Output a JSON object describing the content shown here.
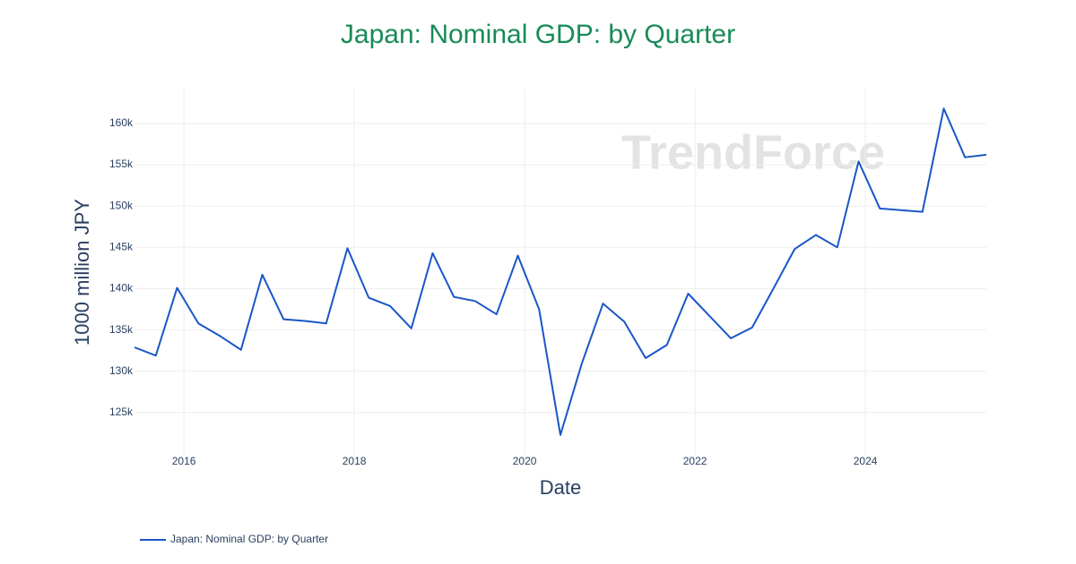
{
  "chart_data": {
    "type": "line",
    "title": "Japan: Nominal GDP: by Quarter",
    "x_label": "Date",
    "y_label": "1000 million JPY",
    "watermark": "TrendForce",
    "x": [
      2015.42,
      2015.67,
      2015.92,
      2016.17,
      2016.42,
      2016.67,
      2016.92,
      2017.17,
      2017.42,
      2017.67,
      2017.92,
      2018.17,
      2018.42,
      2018.67,
      2018.92,
      2019.17,
      2019.42,
      2019.67,
      2019.92,
      2020.17,
      2020.42,
      2020.67,
      2020.92,
      2021.17,
      2021.42,
      2021.67,
      2021.92,
      2022.17,
      2022.42,
      2022.67,
      2022.92,
      2023.17,
      2023.42,
      2023.67,
      2023.92,
      2024.17,
      2024.42,
      2024.67,
      2024.92,
      2025.17,
      2025.42
    ],
    "series": [
      {
        "name": "Japan: Nominal GDP: by Quarter",
        "color": "#1a56c8",
        "values": [
          132900,
          131900,
          140100,
          135800,
          134300,
          132600,
          141700,
          136300,
          136100,
          135800,
          144900,
          138900,
          137900,
          135200,
          144300,
          139000,
          138500,
          136900,
          144000,
          137500,
          122300,
          130900,
          138200,
          136000,
          131600,
          133200,
          139400,
          136700,
          134000,
          135300,
          140000,
          144800,
          146500,
          145000,
          155400,
          149700,
          149500,
          149300,
          161800,
          155900,
          156200
        ]
      }
    ],
    "xlim": [
      2015.42,
      2025.42
    ],
    "xticks": [
      2016,
      2018,
      2020,
      2022,
      2024
    ],
    "ylim": [
      119900,
      164100
    ],
    "yticks": [
      {
        "value": 125000,
        "label": "125k"
      },
      {
        "value": 130000,
        "label": "130k"
      },
      {
        "value": 135000,
        "label": "135k"
      },
      {
        "value": 140000,
        "label": "140k"
      },
      {
        "value": 145000,
        "label": "145k"
      },
      {
        "value": 150000,
        "label": "150k"
      },
      {
        "value": 155000,
        "label": "155k"
      },
      {
        "value": 160000,
        "label": "160k"
      }
    ],
    "grid": true
  }
}
